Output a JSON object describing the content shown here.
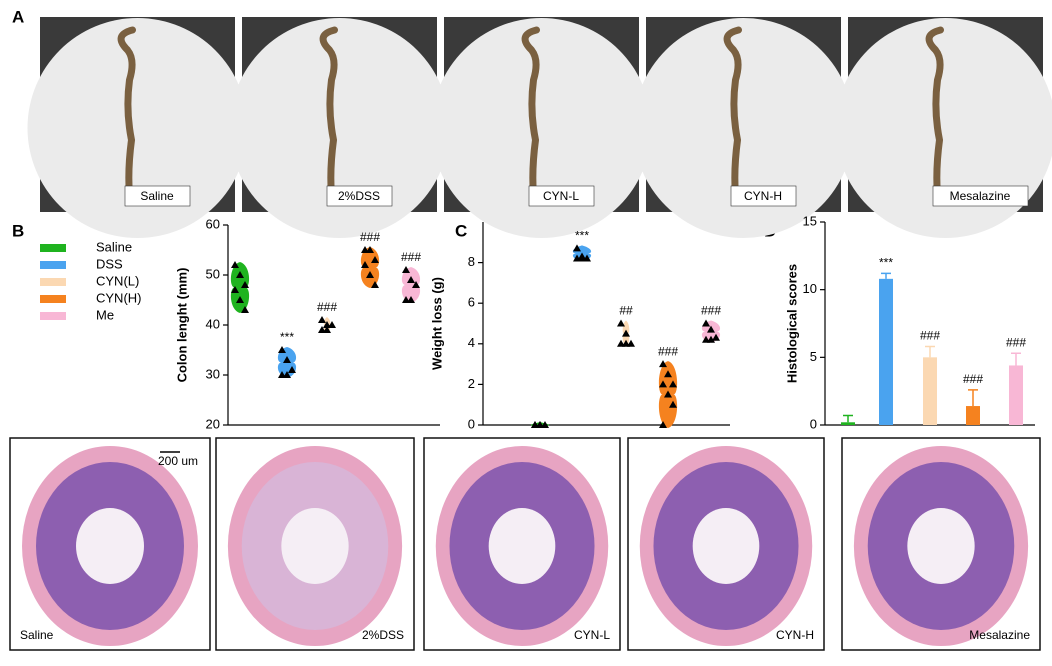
{
  "panel_labels": [
    "A",
    "B",
    "C",
    "D"
  ],
  "photo_labels": [
    "Saline",
    "2%DSS",
    "CYN-L",
    "CYN-H",
    "Mesalazine"
  ],
  "histology_labels": [
    "Saline",
    "2%DSS",
    "CYN-L",
    "CYN-H",
    "Mesalazine"
  ],
  "scale_bar": "200 um",
  "chart_data": [
    {
      "type": "violin",
      "y_label": "Colon lenght (mm)",
      "ylim": [
        20,
        60
      ],
      "yticks": [
        20,
        30,
        40,
        50,
        60
      ],
      "legend": true,
      "series": [
        {
          "name": "Saline",
          "color": "#1fb31f",
          "values": [
            52,
            50,
            48,
            47,
            45,
            43
          ]
        },
        {
          "name": "DSS",
          "color": "#4aa3ef",
          "values": [
            35,
            33,
            31,
            30,
            30
          ],
          "annotation": "***"
        },
        {
          "name": "CYN(L)",
          "color": "#fbd8b2",
          "values": [
            41,
            40,
            40,
            39,
            39
          ],
          "annotation": "###"
        },
        {
          "name": "CYN(H)",
          "color": "#f5821f",
          "values": [
            55,
            55,
            53,
            52,
            50,
            48
          ],
          "annotation": "###"
        },
        {
          "name": "Me",
          "color": "#f8b7d5",
          "values": [
            51,
            49,
            48,
            45,
            45
          ],
          "annotation": "###"
        }
      ]
    },
    {
      "type": "violin",
      "y_label": "Weight loss (g)",
      "ylim": [
        0,
        10
      ],
      "yticks": [
        0,
        2,
        4,
        6,
        8
      ],
      "series": [
        {
          "name": "Saline",
          "color": "#1fb31f",
          "values": [
            0,
            0,
            0,
            0,
            0
          ]
        },
        {
          "name": "DSS",
          "color": "#4aa3ef",
          "values": [
            8.7,
            8.3,
            8.2,
            8.2,
            8.2
          ],
          "annotation": "***"
        },
        {
          "name": "CYN(L)",
          "color": "#fbd8b2",
          "values": [
            5,
            4.5,
            4,
            4,
            4
          ],
          "annotation": "##"
        },
        {
          "name": "CYN(H)",
          "color": "#f5821f",
          "values": [
            3,
            2.5,
            2,
            2,
            1.5,
            1,
            0
          ],
          "annotation": "###"
        },
        {
          "name": "Me",
          "color": "#f8b7d5",
          "values": [
            5,
            4.7,
            4.3,
            4.2,
            4.2
          ],
          "annotation": "###"
        }
      ]
    },
    {
      "type": "bar",
      "y_label": "Histological scores",
      "ylim": [
        0,
        15
      ],
      "yticks": [
        0,
        5,
        10,
        15
      ],
      "values": [
        0.2,
        10.8,
        5.0,
        1.4,
        4.4
      ],
      "errors": [
        0.5,
        0.4,
        0.8,
        1.2,
        0.9
      ],
      "colors": [
        "#1fb31f",
        "#4aa3ef",
        "#fbd8b2",
        "#f5821f",
        "#f8b7d5"
      ],
      "annotations": [
        null,
        "***",
        "###",
        "###",
        "###"
      ]
    }
  ]
}
